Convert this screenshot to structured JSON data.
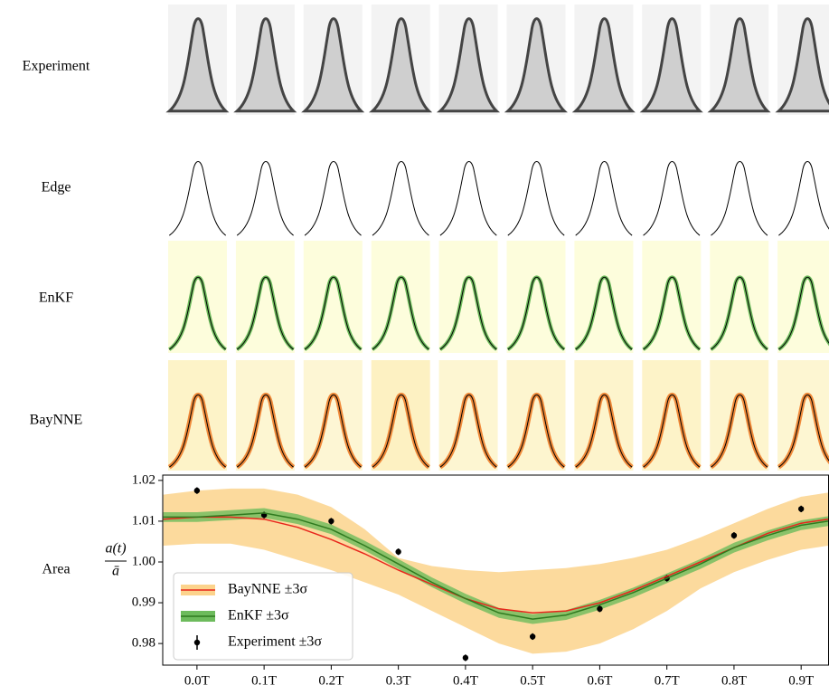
{
  "row_labels": [
    "Experiment",
    "Edge",
    "EnKF",
    "BayNNE",
    "Area"
  ],
  "chart_data": {
    "type": "line",
    "ylabel": {
      "numerator": "a(t)",
      "denominator": "ā"
    },
    "xlim": [
      -0.051,
      0.9415
    ],
    "ylim": [
      0.9747,
      1.0213
    ],
    "xticks": [
      {
        "value": 0,
        "label": "0.0T"
      },
      {
        "value": 0.1,
        "label": "0.1T"
      },
      {
        "value": 0.2,
        "label": "0.2T"
      },
      {
        "value": 0.3,
        "label": "0.3T"
      },
      {
        "value": 0.4,
        "label": "0.4T"
      },
      {
        "value": 0.5,
        "label": "0.5T"
      },
      {
        "value": 0.6,
        "label": "0.6T"
      },
      {
        "value": 0.7,
        "label": "0.7T"
      },
      {
        "value": 0.8,
        "label": "0.8T"
      },
      {
        "value": 0.9,
        "label": "0.9T"
      }
    ],
    "yticks": [
      0.98,
      0.99,
      {
        "value": 1,
        "label": "1.00"
      },
      1.01,
      1.02
    ],
    "legend": "lower left",
    "x": [
      -0.05,
      0,
      0.05,
      0.1,
      0.15,
      0.2,
      0.25,
      0.3,
      0.35,
      0.4,
      0.45,
      0.5,
      0.55,
      0.6,
      0.65,
      0.7,
      0.75,
      0.8,
      0.85,
      0.9,
      0.94
    ],
    "series": [
      {
        "name": "BayNNE ±3σ",
        "color": "#e8261c",
        "band_color": "#fcd38c",
        "values": [
          1.0105,
          1.011,
          1.011,
          1.0105,
          1.0085,
          1.0055,
          1.002,
          0.998,
          0.9945,
          0.991,
          0.9885,
          0.9875,
          0.988,
          0.99,
          0.993,
          0.9965,
          1.0,
          1.0035,
          1.007,
          1.0095,
          1.0105
        ],
        "upper": [
          1.0165,
          1.0175,
          1.018,
          1.018,
          1.0165,
          1.0135,
          1.008,
          1.001,
          0.999,
          0.998,
          0.9975,
          0.998,
          0.9985,
          0.9995,
          1.001,
          1.003,
          1.006,
          1.0095,
          1.013,
          1.016,
          1.017
        ],
        "lower": [
          1.004,
          1.0045,
          1.0045,
          1.003,
          1.0005,
          0.998,
          0.995,
          0.992,
          0.988,
          0.984,
          0.98,
          0.9775,
          0.978,
          0.98,
          0.9835,
          0.988,
          0.9935,
          0.9975,
          1.0005,
          1.003,
          1.004
        ]
      },
      {
        "name": "EnKF ±3σ",
        "color": "#2f7a1f",
        "band_color": "#6dbb5c",
        "values": [
          1.011,
          1.011,
          1.0115,
          1.012,
          1.0105,
          1.008,
          1.004,
          0.9995,
          0.995,
          0.991,
          0.9875,
          0.986,
          0.987,
          0.9895,
          0.9925,
          0.996,
          0.9995,
          1.0035,
          1.0065,
          1.009,
          1.01
        ],
        "upper": [
          1.0122,
          1.0122,
          1.0127,
          1.0132,
          1.0117,
          1.0092,
          1.0052,
          1.0007,
          0.9962,
          0.9922,
          0.9887,
          0.9872,
          0.9882,
          0.9907,
          0.9937,
          0.9972,
          1.0007,
          1.0047,
          1.0077,
          1.0102,
          1.0112
        ],
        "lower": [
          1.0098,
          1.0098,
          1.0103,
          1.0108,
          1.0093,
          1.0068,
          1.0028,
          0.9983,
          0.9938,
          0.9898,
          0.9863,
          0.9848,
          0.9858,
          0.9883,
          0.9913,
          0.9948,
          0.9983,
          1.0023,
          1.0053,
          1.0078,
          1.0088
        ]
      },
      {
        "name": "Experiment ±3σ",
        "color": "#000000",
        "x": [
          0,
          0.1,
          0.2,
          0.3,
          0.4,
          0.5,
          0.6,
          0.7,
          0.8,
          0.9
        ],
        "values": [
          1.0175,
          1.0115,
          1.01,
          1.0025,
          0.9765,
          0.9817,
          0.9885,
          0.996,
          1.0065,
          1.013
        ],
        "errors": [
          0.0008,
          0.0008,
          0.0008,
          0.0008,
          0.0008,
          0.0008,
          0.0008,
          0.0008,
          0.0008,
          0.0008
        ]
      }
    ]
  }
}
